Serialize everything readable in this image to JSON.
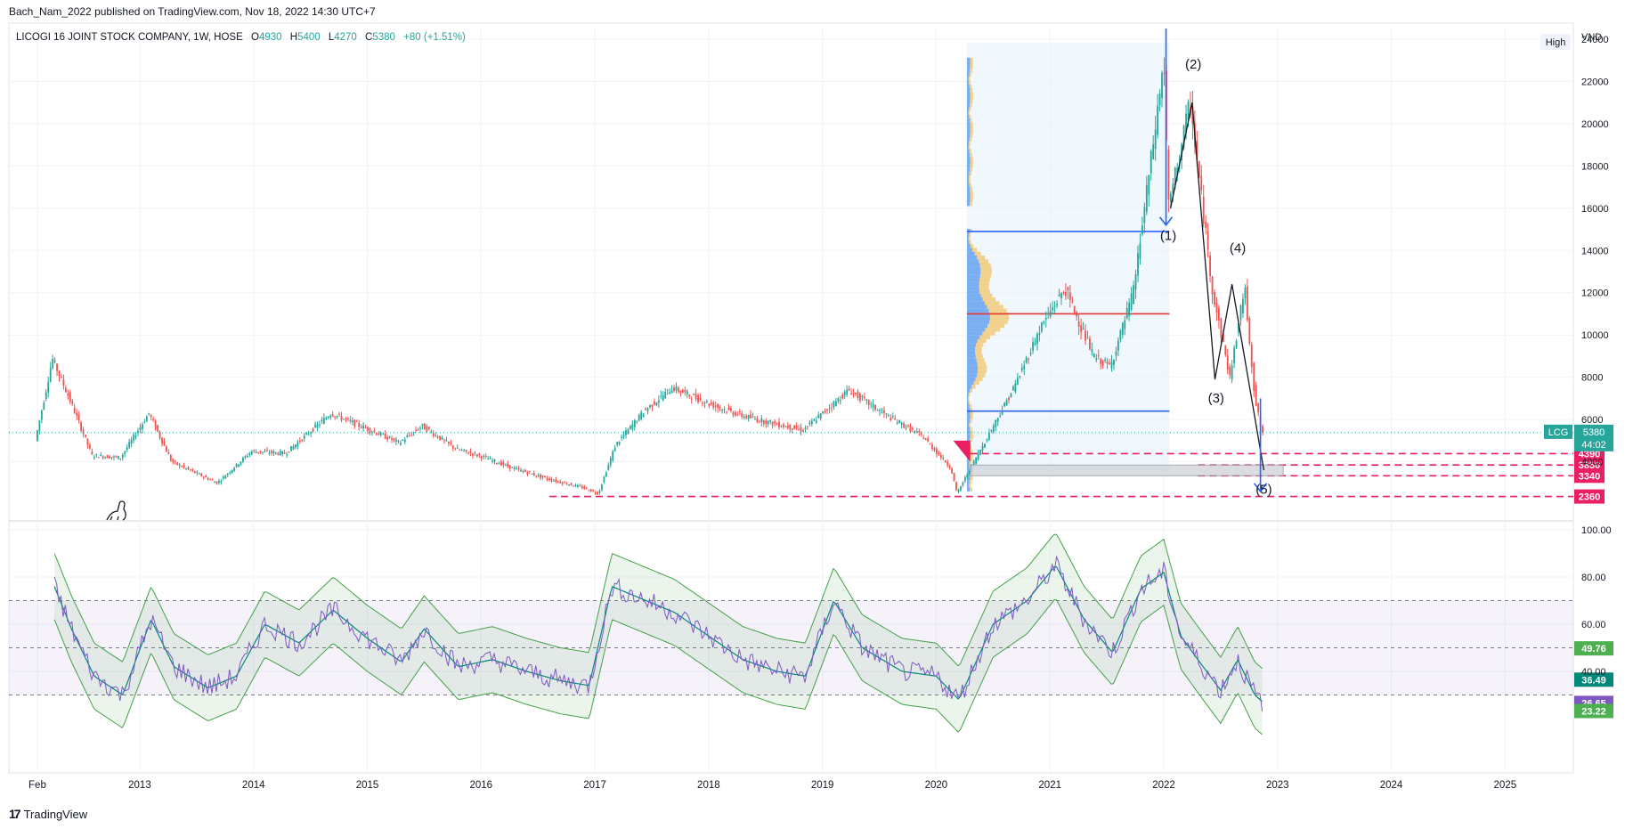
{
  "header": {
    "published": "Bach_Nam_2022 published on TradingView.com, Nov 18, 2022 14:30 UTC+7"
  },
  "legend": {
    "symbol": "LICOGI 16 JOINT STOCK COMPANY, 1W, HOSE",
    "o_label": "O",
    "o": "4930",
    "h_label": "H",
    "h": "5400",
    "l_label": "L",
    "l": "4270",
    "c_label": "C",
    "c": "5380",
    "change": "+80 (+1.51%)"
  },
  "high_button": "High",
  "currency": "VND",
  "footer": {
    "logo": "17",
    "brand": "TradingView"
  },
  "colors": {
    "up": "#26a69a",
    "down": "#ef5350",
    "rsi": "#7e57c2",
    "band": "#43a047",
    "accent_line": "#2962ff",
    "level": "#e91e63"
  },
  "chart_data": [
    {
      "type": "candlestick",
      "title": "LICOGI 16 JOINT STOCK COMPANY, 1W, HOSE",
      "ylabel": "VND",
      "ylim": [
        1500,
        24500
      ],
      "x_ticks": [
        "Feb",
        "2013",
        "2014",
        "2015",
        "2016",
        "2017",
        "2018",
        "2019",
        "2020",
        "2021",
        "2022",
        "2023",
        "2024",
        "2025"
      ],
      "y_ticks": [
        4000,
        6000,
        8000,
        10000,
        12000,
        14000,
        16000,
        18000,
        20000,
        22000,
        24000
      ],
      "price_path": [
        {
          "t": 2012.1,
          "price": 5000
        },
        {
          "t": 2012.2,
          "price": 7500
        },
        {
          "t": 2012.25,
          "price": 8900
        },
        {
          "t": 2012.4,
          "price": 7000
        },
        {
          "t": 2012.6,
          "price": 4300
        },
        {
          "t": 2012.85,
          "price": 4200
        },
        {
          "t": 2013.1,
          "price": 6300
        },
        {
          "t": 2013.3,
          "price": 4000
        },
        {
          "t": 2013.7,
          "price": 3000
        },
        {
          "t": 2014.0,
          "price": 4500
        },
        {
          "t": 2014.3,
          "price": 4400
        },
        {
          "t": 2014.7,
          "price": 6300
        },
        {
          "t": 2015.0,
          "price": 5600
        },
        {
          "t": 2015.3,
          "price": 4900
        },
        {
          "t": 2015.5,
          "price": 5700
        },
        {
          "t": 2015.8,
          "price": 4600
        },
        {
          "t": 2016.0,
          "price": 4300
        },
        {
          "t": 2016.3,
          "price": 3700
        },
        {
          "t": 2016.6,
          "price": 3200
        },
        {
          "t": 2016.9,
          "price": 2800
        },
        {
          "t": 2017.05,
          "price": 2500
        },
        {
          "t": 2017.2,
          "price": 4800
        },
        {
          "t": 2017.45,
          "price": 6400
        },
        {
          "t": 2017.7,
          "price": 7500
        },
        {
          "t": 2018.0,
          "price": 6800
        },
        {
          "t": 2018.3,
          "price": 6200
        },
        {
          "t": 2018.6,
          "price": 5800
        },
        {
          "t": 2018.85,
          "price": 5500
        },
        {
          "t": 2019.0,
          "price": 6200
        },
        {
          "t": 2019.25,
          "price": 7400
        },
        {
          "t": 2019.55,
          "price": 6300
        },
        {
          "t": 2019.9,
          "price": 5200
        },
        {
          "t": 2020.15,
          "price": 3700
        },
        {
          "t": 2020.2,
          "price": 2500
        },
        {
          "t": 2020.45,
          "price": 5000
        },
        {
          "t": 2020.7,
          "price": 7500
        },
        {
          "t": 2020.95,
          "price": 10500
        },
        {
          "t": 2021.15,
          "price": 12200
        },
        {
          "t": 2021.4,
          "price": 9000
        },
        {
          "t": 2021.55,
          "price": 8500
        },
        {
          "t": 2021.75,
          "price": 12000
        },
        {
          "t": 2021.95,
          "price": 20000
        },
        {
          "t": 2022.02,
          "price": 23000
        },
        {
          "t": 2022.06,
          "price": 16000
        },
        {
          "t": 2022.25,
          "price": 21000
        },
        {
          "t": 2022.45,
          "price": 12000
        },
        {
          "t": 2022.6,
          "price": 8000
        },
        {
          "t": 2022.73,
          "price": 12300
        },
        {
          "t": 2022.82,
          "price": 7000
        },
        {
          "t": 2022.88,
          "price": 5400
        }
      ],
      "levels": [
        {
          "price": 4390,
          "label": "4390"
        },
        {
          "price": 3850,
          "label": "3850"
        },
        {
          "price": 3340,
          "label": "3340"
        },
        {
          "price": 2360,
          "label": "2360"
        }
      ],
      "last_price": {
        "symbol": "LCG",
        "value": "5380",
        "countdown": "44:02"
      },
      "volume_profile_lines": [
        14900,
        11000,
        6400
      ],
      "wave_labels": [
        {
          "label": "(1)",
          "t": 2022.04,
          "price": 14500
        },
        {
          "label": "(2)",
          "t": 2022.26,
          "price": 22600
        },
        {
          "label": "(3)",
          "t": 2022.46,
          "price": 6800
        },
        {
          "label": "(4)",
          "t": 2022.65,
          "price": 13900
        },
        {
          "label": "(5)",
          "t": 2022.88,
          "price": 2500
        }
      ]
    },
    {
      "type": "line",
      "title": "RSI",
      "ylim": [
        0,
        100
      ],
      "y_ticks": [
        40,
        60,
        80,
        100
      ],
      "bands": [
        30,
        50,
        70
      ],
      "rsi_path": [
        {
          "t": 2012.25,
          "v": 76
        },
        {
          "t": 2012.4,
          "v": 58
        },
        {
          "t": 2012.6,
          "v": 38
        },
        {
          "t": 2012.85,
          "v": 30
        },
        {
          "t": 2013.1,
          "v": 62
        },
        {
          "t": 2013.3,
          "v": 42
        },
        {
          "t": 2013.6,
          "v": 33
        },
        {
          "t": 2013.85,
          "v": 38
        },
        {
          "t": 2014.1,
          "v": 60
        },
        {
          "t": 2014.4,
          "v": 52
        },
        {
          "t": 2014.7,
          "v": 66
        },
        {
          "t": 2015.0,
          "v": 54
        },
        {
          "t": 2015.3,
          "v": 44
        },
        {
          "t": 2015.5,
          "v": 58
        },
        {
          "t": 2015.8,
          "v": 42
        },
        {
          "t": 2016.1,
          "v": 45
        },
        {
          "t": 2016.4,
          "v": 40
        },
        {
          "t": 2016.7,
          "v": 36
        },
        {
          "t": 2016.95,
          "v": 34
        },
        {
          "t": 2017.15,
          "v": 76
        },
        {
          "t": 2017.45,
          "v": 70
        },
        {
          "t": 2017.7,
          "v": 65
        },
        {
          "t": 2018.0,
          "v": 55
        },
        {
          "t": 2018.3,
          "v": 45
        },
        {
          "t": 2018.6,
          "v": 40
        },
        {
          "t": 2018.85,
          "v": 38
        },
        {
          "t": 2019.1,
          "v": 70
        },
        {
          "t": 2019.35,
          "v": 50
        },
        {
          "t": 2019.7,
          "v": 40
        },
        {
          "t": 2020.0,
          "v": 38
        },
        {
          "t": 2020.2,
          "v": 28
        },
        {
          "t": 2020.5,
          "v": 60
        },
        {
          "t": 2020.8,
          "v": 70
        },
        {
          "t": 2021.05,
          "v": 85
        },
        {
          "t": 2021.3,
          "v": 62
        },
        {
          "t": 2021.55,
          "v": 48
        },
        {
          "t": 2021.8,
          "v": 75
        },
        {
          "t": 2022.0,
          "v": 82
        },
        {
          "t": 2022.15,
          "v": 55
        },
        {
          "t": 2022.3,
          "v": 45
        },
        {
          "t": 2022.5,
          "v": 32
        },
        {
          "t": 2022.65,
          "v": 45
        },
        {
          "t": 2022.8,
          "v": 30
        },
        {
          "t": 2022.88,
          "v": 26.65
        }
      ],
      "values": [
        {
          "label": "49.76",
          "v": 49.76,
          "color": "#4caf50"
        },
        {
          "label": "36.49",
          "v": 36.49,
          "color": "#00897b"
        },
        {
          "label": "26.65",
          "v": 26.65,
          "color": "#7e57c2"
        },
        {
          "label": "23.22",
          "v": 23.22,
          "color": "#4caf50"
        }
      ]
    }
  ]
}
